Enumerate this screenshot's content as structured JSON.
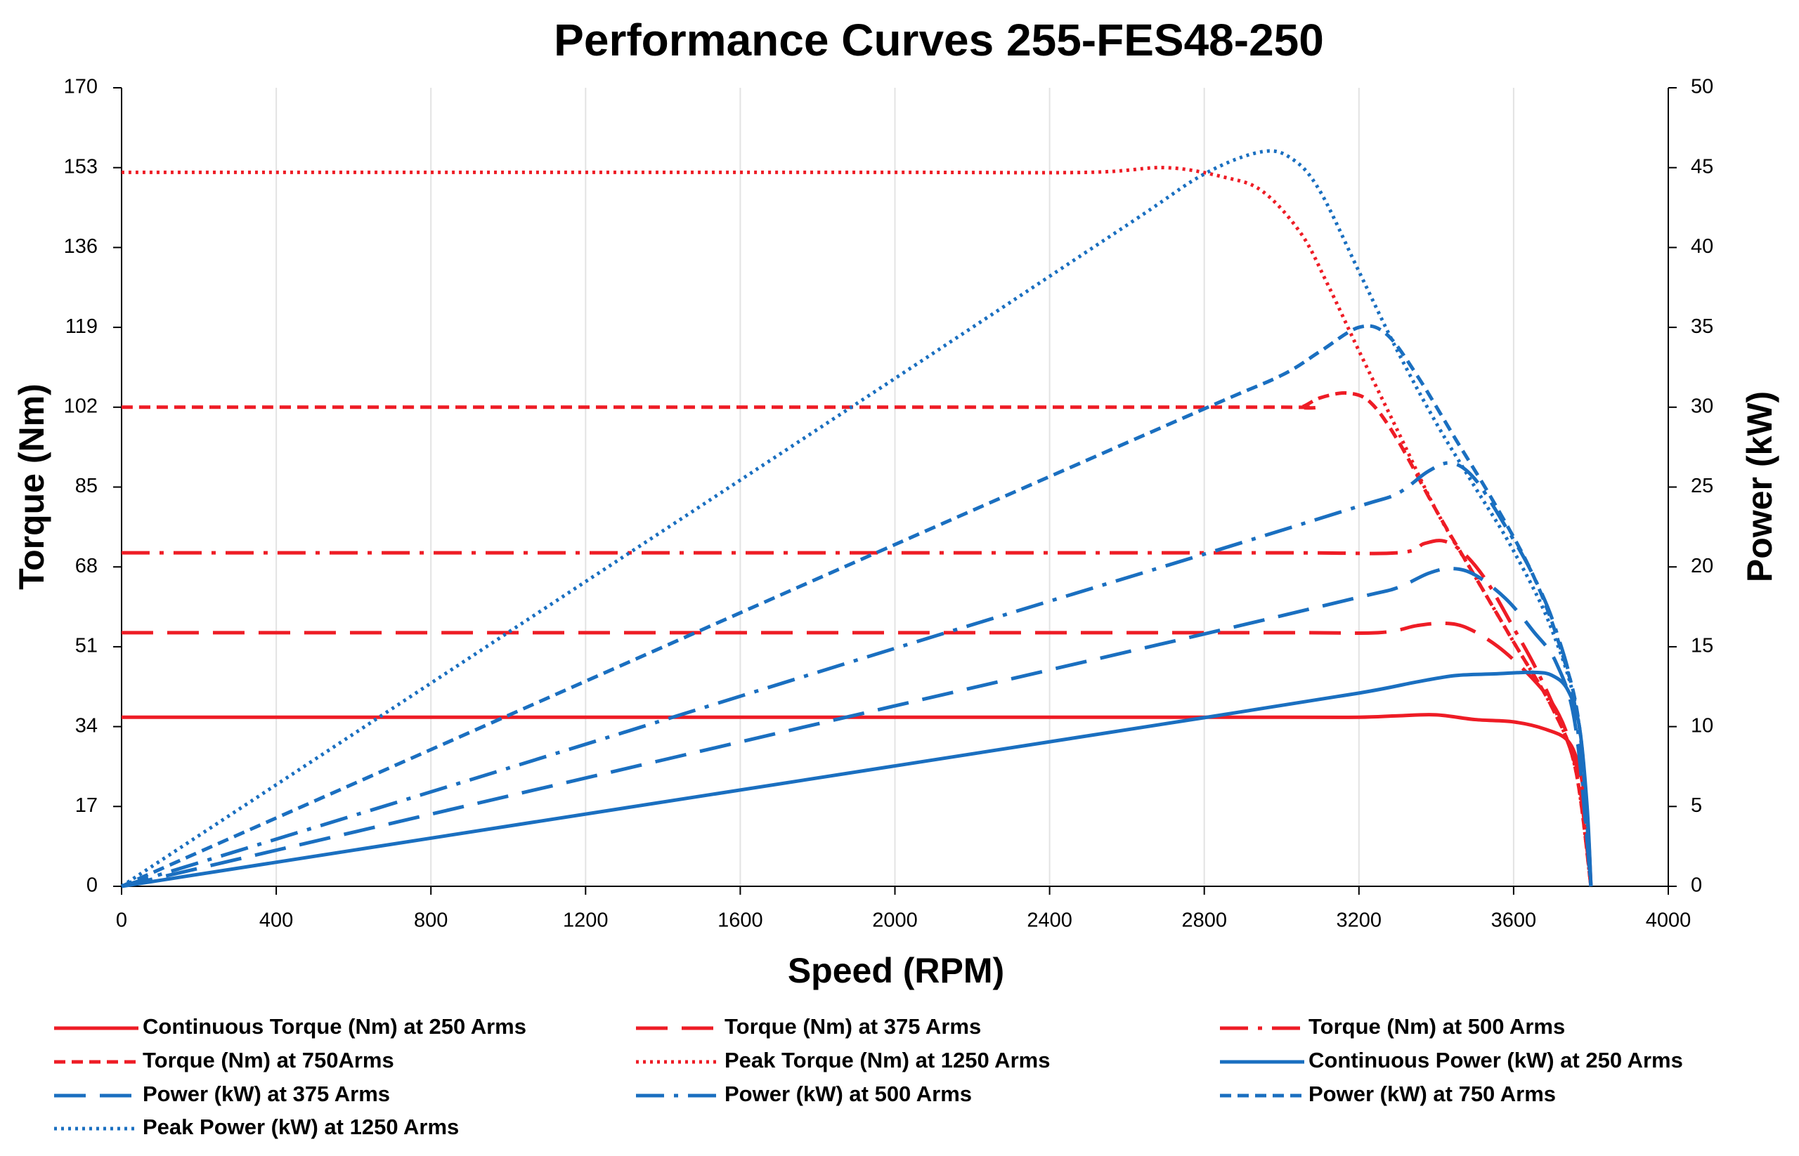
{
  "chart_data": {
    "type": "line",
    "title": "Performance Curves 255-FES48-250",
    "x_label": "Speed (RPM)",
    "y_label": "Torque (Nm)",
    "y2_label": "Power (kW)",
    "xlim": [
      0,
      4000
    ],
    "xticks": [
      0,
      400,
      800,
      1200,
      1600,
      2000,
      2400,
      2800,
      3200,
      3600,
      4000
    ],
    "ylim": [
      0,
      170
    ],
    "yticks": [
      0,
      17,
      34,
      51,
      68,
      85,
      102,
      119,
      136,
      153,
      170
    ],
    "y2lim": [
      0,
      50
    ],
    "y2ticks": [
      0,
      5,
      10,
      15,
      20,
      25,
      30,
      35,
      40,
      45,
      50
    ],
    "grid": "x",
    "series": [
      {
        "name": "Continuous Torque (Nm) at 250 Arms",
        "color": "#ee1c25",
        "dash": "solid",
        "x": [
          0,
          1000,
          2000,
          3000,
          3200,
          3300,
          3400,
          3500,
          3600,
          3680,
          3740,
          3770,
          3790,
          3800
        ],
        "values": [
          36,
          36,
          36,
          36,
          36,
          36.3,
          36.5,
          35.5,
          35,
          33.5,
          31,
          25,
          15,
          0
        ]
      },
      {
        "name": "Torque (Nm) at 375 Arms",
        "color": "#ee1c25",
        "dash": "long-dash",
        "x": [
          0,
          1000,
          2000,
          3000,
          3250,
          3350,
          3420,
          3480,
          3560,
          3640,
          3700,
          3740,
          3770,
          3800
        ],
        "values": [
          54,
          54,
          54,
          54,
          54,
          55.5,
          56,
          55,
          51,
          45,
          39,
          32,
          22,
          0
        ]
      },
      {
        "name": "Torque (Nm) at 500 Arms",
        "color": "#ee1c25",
        "dash": "dash-dot",
        "x": [
          0,
          1000,
          2000,
          3000,
          3300,
          3370,
          3420,
          3470,
          3530,
          3600,
          3660,
          3720,
          3770,
          3800
        ],
        "values": [
          71,
          71,
          71,
          71,
          71,
          73,
          73.5,
          71,
          65,
          55,
          46,
          35,
          22,
          0
        ]
      },
      {
        "name": "Torque (Nm) at 750Arms",
        "color": "#ee1c25",
        "dash": "short-dash",
        "x": [
          0,
          1000,
          2000,
          3000,
          3050,
          3100,
          3170,
          3230,
          3300,
          3400,
          3500,
          3600,
          3700,
          3760,
          3800
        ],
        "values": [
          102,
          102,
          102,
          102,
          102,
          104,
          105,
          103,
          95,
          80,
          66,
          52,
          38,
          25,
          0
        ]
      },
      {
        "name": "Peak Torque (Nm) at 1250  Arms",
        "color": "#ee1c25",
        "dash": "dot",
        "x": [
          0,
          1000,
          2000,
          2500,
          2700,
          2850,
          2950,
          3050,
          3120,
          3200,
          3300,
          3400,
          3500,
          3600,
          3700,
          3760,
          3800
        ],
        "values": [
          152,
          152,
          152,
          152,
          153,
          151,
          148,
          139,
          128,
          114,
          97,
          80,
          66,
          52,
          38,
          25,
          0
        ]
      },
      {
        "name": "Continuous Power (kW) at 250 Arms",
        "color": "#1a6fc0",
        "dash": "solid",
        "axis": "y2",
        "x": [
          0,
          1000,
          2000,
          2800,
          3200,
          3350,
          3450,
          3550,
          3650,
          3700,
          3740,
          3770,
          3790,
          3800
        ],
        "values": [
          0,
          3.77,
          7.54,
          10.56,
          12.1,
          12.8,
          13.2,
          13.3,
          13.4,
          13.2,
          12.3,
          10,
          5,
          0
        ]
      },
      {
        "name": "Power (kW) at 375 Arms",
        "color": "#1a6fc0",
        "dash": "long-dash",
        "axis": "y2",
        "x": [
          0,
          1000,
          2000,
          2800,
          3200,
          3300,
          3380,
          3440,
          3500,
          3580,
          3650,
          3710,
          3760,
          3800
        ],
        "values": [
          0,
          5.65,
          11.3,
          15.8,
          18.1,
          18.7,
          19.6,
          19.9,
          19.5,
          18,
          16,
          14,
          10,
          0
        ]
      },
      {
        "name": "Power (kW) at 500 Arms",
        "color": "#1a6fc0",
        "dash": "dash-dot",
        "axis": "y2",
        "x": [
          0,
          1000,
          2000,
          2800,
          3200,
          3300,
          3380,
          3440,
          3500,
          3580,
          3650,
          3710,
          3760,
          3800
        ],
        "values": [
          0,
          7.4,
          14.9,
          20.8,
          23.8,
          24.6,
          26,
          26.5,
          25.5,
          22.5,
          19.5,
          16,
          11,
          0
        ]
      },
      {
        "name": "Power (kW) at 750 Arms",
        "color": "#1a6fc0",
        "dash": "short-dash",
        "axis": "y2",
        "x": [
          0,
          1000,
          2000,
          2800,
          3000,
          3100,
          3200,
          3270,
          3350,
          3450,
          3550,
          3650,
          3720,
          3770,
          3800
        ],
        "values": [
          0,
          10.7,
          21.4,
          29.9,
          32,
          33.5,
          35,
          34.6,
          32,
          28,
          24,
          19.5,
          15,
          10,
          0
        ]
      },
      {
        "name": "Peak Power (kW) at 1250 Arms",
        "color": "#1a6fc0",
        "dash": "dot",
        "axis": "y2",
        "x": [
          0,
          1000,
          2000,
          2600,
          2800,
          2950,
          3030,
          3100,
          3200,
          3300,
          3400,
          3500,
          3600,
          3700,
          3770,
          3800
        ],
        "values": [
          0,
          15.9,
          31.8,
          41.4,
          44.6,
          46,
          45.5,
          43.5,
          38.5,
          33.5,
          29,
          25,
          21,
          16,
          10,
          0
        ]
      }
    ]
  }
}
